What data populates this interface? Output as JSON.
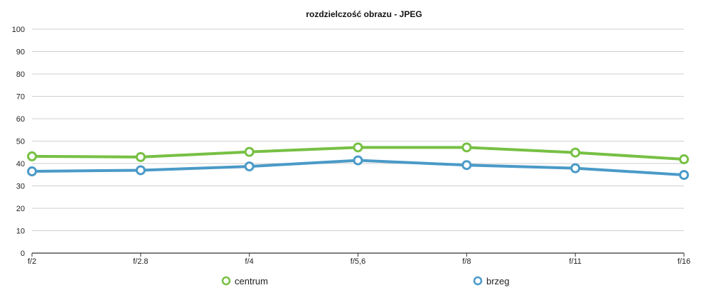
{
  "chart_data": {
    "type": "line",
    "title": "rozdzielczość obrazu - JPEG",
    "xlabel": "",
    "ylabel": "",
    "categories": [
      "f/2",
      "f/2.8",
      "f/4",
      "f/5,6",
      "f/8",
      "f/11",
      "f/16"
    ],
    "y_ticks": [
      "0",
      "10",
      "20",
      "30",
      "40",
      "50",
      "60",
      "70",
      "80",
      "90",
      "100"
    ],
    "ylim": [
      0,
      100
    ],
    "grid": true,
    "legend_position": "bottom",
    "series": [
      {
        "name": "centrum",
        "color": "#77c044",
        "values": [
          43.2,
          42.9,
          45.2,
          47.2,
          47.2,
          44.9,
          41.9
        ]
      },
      {
        "name": "brzeg",
        "color": "#4a9ac8",
        "values": [
          36.5,
          37.0,
          38.7,
          41.4,
          39.3,
          37.9,
          34.9
        ]
      }
    ]
  }
}
